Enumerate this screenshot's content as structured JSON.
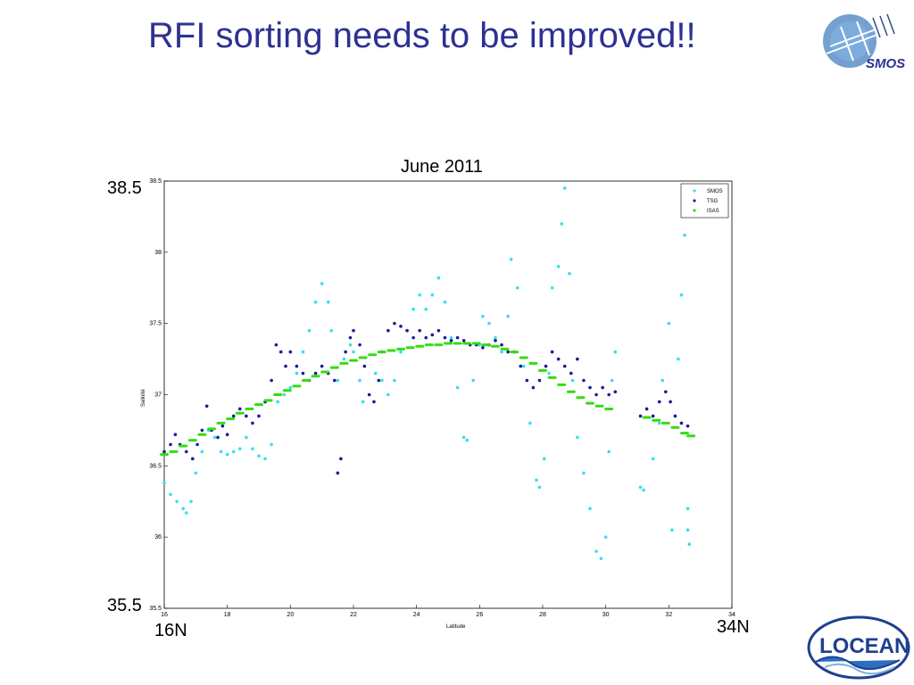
{
  "slide": {
    "title": "RFI sorting needs to be improved!!",
    "smos_logo_text": "SMOS",
    "locean_logo_text": "LOCEAN"
  },
  "annotations": {
    "y_max": "38.5",
    "y_min": "35.5",
    "x_start": "16N",
    "x_end": "34N"
  },
  "chart_data": {
    "type": "scatter",
    "title": "June 2011",
    "xlabel": "Latitude",
    "ylabel": "Salinité",
    "xlim": [
      16,
      34
    ],
    "ylim": [
      35.5,
      38.5
    ],
    "xticks": [
      "16",
      "18",
      "20",
      "22",
      "24",
      "26",
      "28",
      "30",
      "32",
      "34"
    ],
    "yticks": [
      "35.5",
      "36",
      "36.5",
      "37",
      "37.5",
      "38",
      "38.5"
    ],
    "legend_position": "top-right",
    "grid": false,
    "series": [
      {
        "name": "SMOS",
        "color": "#33e0ee",
        "points": [
          [
            16.0,
            36.38
          ],
          [
            16.2,
            36.3
          ],
          [
            16.4,
            36.25
          ],
          [
            16.6,
            36.2
          ],
          [
            16.7,
            36.17
          ],
          [
            16.85,
            36.25
          ],
          [
            17.0,
            36.45
          ],
          [
            17.2,
            36.6
          ],
          [
            17.4,
            36.75
          ],
          [
            17.6,
            36.7
          ],
          [
            17.8,
            36.6
          ],
          [
            18.0,
            36.58
          ],
          [
            18.2,
            36.6
          ],
          [
            18.4,
            36.62
          ],
          [
            18.6,
            36.7
          ],
          [
            18.8,
            36.62
          ],
          [
            19.0,
            36.57
          ],
          [
            19.2,
            36.55
          ],
          [
            19.4,
            36.65
          ],
          [
            19.6,
            36.95
          ],
          [
            19.8,
            37.0
          ],
          [
            20.0,
            37.05
          ],
          [
            20.2,
            37.15
          ],
          [
            20.4,
            37.3
          ],
          [
            20.6,
            37.45
          ],
          [
            20.8,
            37.65
          ],
          [
            21.0,
            37.78
          ],
          [
            21.2,
            37.65
          ],
          [
            21.3,
            37.45
          ],
          [
            21.5,
            37.1
          ],
          [
            21.7,
            37.25
          ],
          [
            21.9,
            37.35
          ],
          [
            22.0,
            37.3
          ],
          [
            22.2,
            37.1
          ],
          [
            22.3,
            36.95
          ],
          [
            22.5,
            37.0
          ],
          [
            22.7,
            37.15
          ],
          [
            22.9,
            37.1
          ],
          [
            23.1,
            37.0
          ],
          [
            23.3,
            37.1
          ],
          [
            23.5,
            37.3
          ],
          [
            23.7,
            37.45
          ],
          [
            23.9,
            37.6
          ],
          [
            24.1,
            37.7
          ],
          [
            24.3,
            37.6
          ],
          [
            24.5,
            37.7
          ],
          [
            24.7,
            37.82
          ],
          [
            24.9,
            37.65
          ],
          [
            25.1,
            37.4
          ],
          [
            25.3,
            37.05
          ],
          [
            25.5,
            36.7
          ],
          [
            25.6,
            36.68
          ],
          [
            25.8,
            37.1
          ],
          [
            26.0,
            37.35
          ],
          [
            26.1,
            37.55
          ],
          [
            26.3,
            37.5
          ],
          [
            26.5,
            37.4
          ],
          [
            26.7,
            37.3
          ],
          [
            26.9,
            37.55
          ],
          [
            27.0,
            37.95
          ],
          [
            27.2,
            37.75
          ],
          [
            27.4,
            37.2
          ],
          [
            27.6,
            36.8
          ],
          [
            27.8,
            36.4
          ],
          [
            27.9,
            36.35
          ],
          [
            28.05,
            36.55
          ],
          [
            28.2,
            37.15
          ],
          [
            28.3,
            37.75
          ],
          [
            28.5,
            37.9
          ],
          [
            28.6,
            38.2
          ],
          [
            28.7,
            38.45
          ],
          [
            28.85,
            37.85
          ],
          [
            28.95,
            37.1
          ],
          [
            29.1,
            36.7
          ],
          [
            29.3,
            36.45
          ],
          [
            29.5,
            36.2
          ],
          [
            29.7,
            35.9
          ],
          [
            29.85,
            35.85
          ],
          [
            30.0,
            36.0
          ],
          [
            30.1,
            36.6
          ],
          [
            30.2,
            37.1
          ],
          [
            30.3,
            37.3
          ],
          [
            31.1,
            36.35
          ],
          [
            31.2,
            36.33
          ],
          [
            31.5,
            36.55
          ],
          [
            31.7,
            36.8
          ],
          [
            31.8,
            37.1
          ],
          [
            32.0,
            37.5
          ],
          [
            32.1,
            36.05
          ],
          [
            32.3,
            37.25
          ],
          [
            32.4,
            37.7
          ],
          [
            32.5,
            38.12
          ],
          [
            32.6,
            36.2
          ],
          [
            32.6,
            36.05
          ],
          [
            32.65,
            35.95
          ]
        ]
      },
      {
        "name": "TSG",
        "color": "#1a1a9e",
        "points": [
          [
            16.0,
            36.6
          ],
          [
            16.2,
            36.65
          ],
          [
            16.35,
            36.72
          ],
          [
            16.5,
            36.65
          ],
          [
            16.7,
            36.6
          ],
          [
            16.9,
            36.55
          ],
          [
            17.05,
            36.65
          ],
          [
            17.2,
            36.75
          ],
          [
            17.35,
            36.92
          ],
          [
            17.5,
            36.75
          ],
          [
            17.7,
            36.7
          ],
          [
            17.85,
            36.78
          ],
          [
            18.0,
            36.72
          ],
          [
            18.2,
            36.85
          ],
          [
            18.4,
            36.9
          ],
          [
            18.6,
            36.85
          ],
          [
            18.8,
            36.8
          ],
          [
            19.0,
            36.85
          ],
          [
            19.2,
            36.95
          ],
          [
            19.4,
            37.1
          ],
          [
            19.55,
            37.35
          ],
          [
            19.7,
            37.3
          ],
          [
            19.85,
            37.2
          ],
          [
            20.0,
            37.3
          ],
          [
            20.2,
            37.2
          ],
          [
            20.4,
            37.15
          ],
          [
            20.6,
            37.1
          ],
          [
            20.8,
            37.15
          ],
          [
            21.0,
            37.2
          ],
          [
            21.2,
            37.15
          ],
          [
            21.4,
            37.1
          ],
          [
            21.5,
            36.45
          ],
          [
            21.6,
            36.55
          ],
          [
            21.75,
            37.3
          ],
          [
            21.9,
            37.4
          ],
          [
            22.0,
            37.45
          ],
          [
            22.2,
            37.35
          ],
          [
            22.35,
            37.2
          ],
          [
            22.5,
            37.0
          ],
          [
            22.65,
            36.95
          ],
          [
            22.8,
            37.1
          ],
          [
            22.9,
            37.3
          ],
          [
            23.1,
            37.45
          ],
          [
            23.3,
            37.5
          ],
          [
            23.5,
            37.48
          ],
          [
            23.7,
            37.45
          ],
          [
            23.9,
            37.4
          ],
          [
            24.1,
            37.45
          ],
          [
            24.3,
            37.4
          ],
          [
            24.5,
            37.42
          ],
          [
            24.7,
            37.45
          ],
          [
            24.9,
            37.4
          ],
          [
            25.1,
            37.38
          ],
          [
            25.3,
            37.4
          ],
          [
            25.5,
            37.38
          ],
          [
            25.7,
            37.35
          ],
          [
            25.9,
            37.35
          ],
          [
            26.1,
            37.33
          ],
          [
            26.3,
            37.35
          ],
          [
            26.5,
            37.38
          ],
          [
            26.7,
            37.35
          ],
          [
            26.9,
            37.3
          ],
          [
            27.1,
            37.3
          ],
          [
            27.3,
            37.2
          ],
          [
            27.5,
            37.1
          ],
          [
            27.7,
            37.05
          ],
          [
            27.9,
            37.1
          ],
          [
            28.1,
            37.2
          ],
          [
            28.3,
            37.3
          ],
          [
            28.5,
            37.25
          ],
          [
            28.7,
            37.2
          ],
          [
            28.9,
            37.15
          ],
          [
            29.1,
            37.25
          ],
          [
            29.3,
            37.1
          ],
          [
            29.5,
            37.05
          ],
          [
            29.7,
            37.0
          ],
          [
            29.9,
            37.05
          ],
          [
            30.1,
            37.0
          ],
          [
            30.3,
            37.02
          ],
          [
            31.1,
            36.85
          ],
          [
            31.3,
            36.9
          ],
          [
            31.5,
            36.85
          ],
          [
            31.7,
            36.95
          ],
          [
            31.9,
            37.02
          ],
          [
            32.05,
            36.95
          ],
          [
            32.2,
            36.85
          ],
          [
            32.4,
            36.8
          ],
          [
            32.6,
            36.78
          ]
        ]
      },
      {
        "name": "ISAS",
        "color": "#33dd11",
        "points": [
          [
            16.0,
            36.58
          ],
          [
            16.3,
            36.6
          ],
          [
            16.6,
            36.64
          ],
          [
            16.9,
            36.68
          ],
          [
            17.2,
            36.72
          ],
          [
            17.5,
            36.76
          ],
          [
            17.8,
            36.8
          ],
          [
            18.1,
            36.83
          ],
          [
            18.4,
            36.87
          ],
          [
            18.7,
            36.9
          ],
          [
            19.0,
            36.93
          ],
          [
            19.3,
            36.96
          ],
          [
            19.6,
            37.0
          ],
          [
            19.9,
            37.03
          ],
          [
            20.2,
            37.06
          ],
          [
            20.5,
            37.1
          ],
          [
            20.8,
            37.13
          ],
          [
            21.1,
            37.16
          ],
          [
            21.4,
            37.19
          ],
          [
            21.7,
            37.22
          ],
          [
            22.0,
            37.24
          ],
          [
            22.3,
            37.26
          ],
          [
            22.6,
            37.28
          ],
          [
            22.9,
            37.3
          ],
          [
            23.2,
            37.31
          ],
          [
            23.5,
            37.32
          ],
          [
            23.8,
            37.33
          ],
          [
            24.1,
            37.34
          ],
          [
            24.4,
            37.35
          ],
          [
            24.7,
            37.35
          ],
          [
            25.0,
            37.36
          ],
          [
            25.3,
            37.36
          ],
          [
            25.6,
            37.36
          ],
          [
            25.9,
            37.36
          ],
          [
            26.2,
            37.35
          ],
          [
            26.5,
            37.34
          ],
          [
            26.8,
            37.32
          ],
          [
            27.1,
            37.3
          ],
          [
            27.4,
            37.26
          ],
          [
            27.7,
            37.22
          ],
          [
            28.0,
            37.17
          ],
          [
            28.3,
            37.12
          ],
          [
            28.6,
            37.07
          ],
          [
            28.9,
            37.02
          ],
          [
            29.2,
            36.98
          ],
          [
            29.5,
            36.94
          ],
          [
            29.8,
            36.92
          ],
          [
            30.1,
            36.9
          ],
          [
            31.3,
            36.84
          ],
          [
            31.6,
            36.82
          ],
          [
            31.9,
            36.8
          ],
          [
            32.2,
            36.77
          ],
          [
            32.5,
            36.73
          ],
          [
            32.7,
            36.71
          ]
        ]
      }
    ]
  }
}
